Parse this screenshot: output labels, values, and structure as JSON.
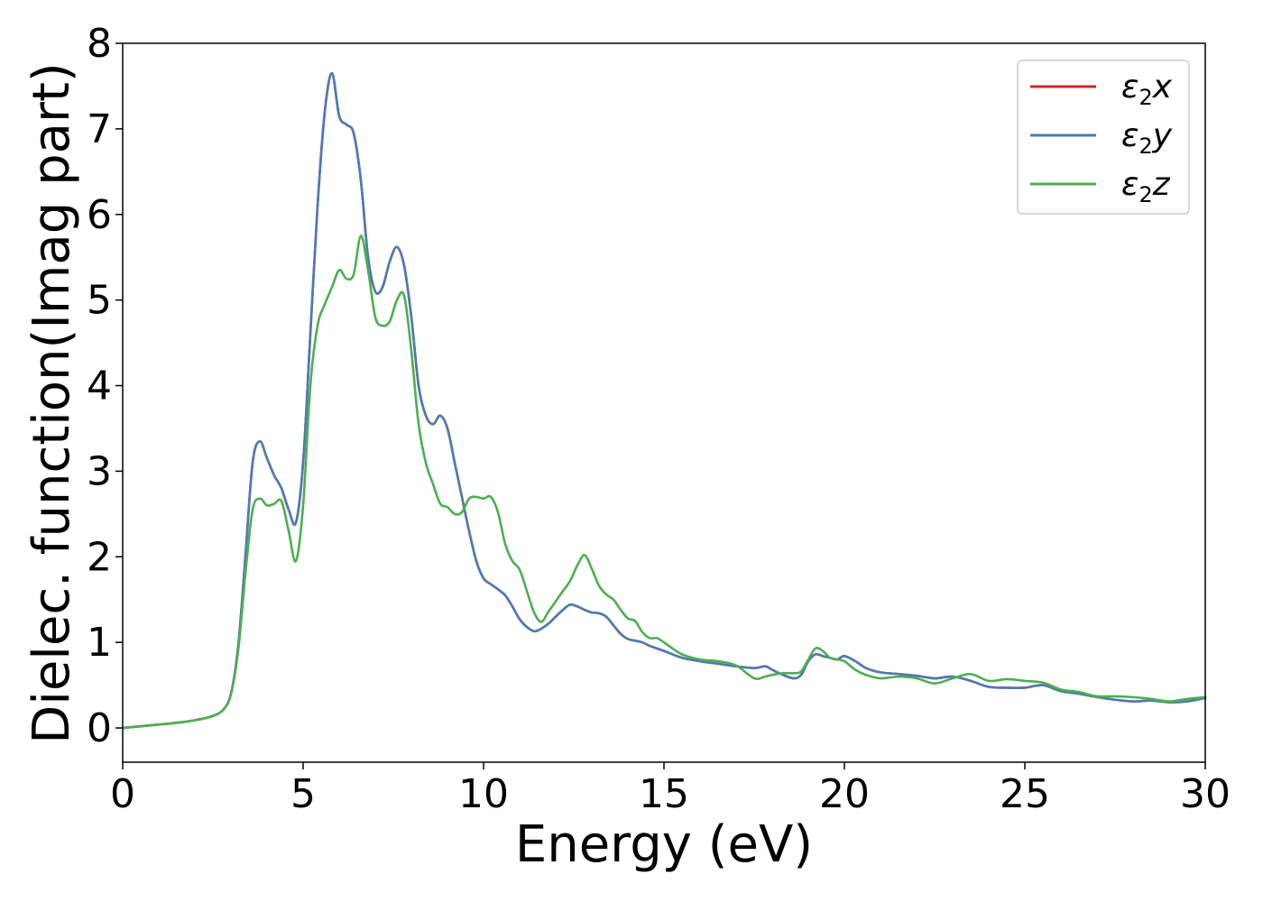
{
  "chart_data": {
    "type": "line",
    "xlabel": "Energy (eV)",
    "ylabel": "Dielec. function(Imag part)",
    "xlim": [
      0,
      30
    ],
    "ylim": [
      -0.4,
      8
    ],
    "xticks": [
      0,
      5,
      10,
      15,
      20,
      25,
      30
    ],
    "xtick_labels": [
      "0",
      "5",
      "10",
      "15",
      "20",
      "25",
      "30"
    ],
    "yticks": [
      0,
      1,
      2,
      3,
      4,
      5,
      6,
      7,
      8
    ],
    "ytick_labels": [
      "0",
      "1",
      "2",
      "3",
      "4",
      "5",
      "6",
      "7",
      "8"
    ],
    "grid": false,
    "legend_position": "top-right",
    "series": [
      {
        "name": "ε₂x",
        "legend_base": "ε",
        "legend_sub": "2",
        "legend_tail": "x",
        "color": "#d62728",
        "x": [
          0,
          0.5,
          1,
          1.5,
          2,
          2.5,
          2.8,
          3.0,
          3.2,
          3.4,
          3.6,
          3.8,
          4.0,
          4.2,
          4.4,
          4.6,
          4.8,
          5.0,
          5.2,
          5.4,
          5.6,
          5.8,
          6.0,
          6.2,
          6.4,
          6.6,
          6.8,
          7.0,
          7.2,
          7.4,
          7.6,
          7.8,
          8.0,
          8.2,
          8.4,
          8.6,
          8.8,
          9.0,
          9.2,
          9.4,
          9.6,
          9.8,
          10.0,
          10.2,
          10.4,
          10.6,
          10.8,
          11.0,
          11.2,
          11.4,
          11.6,
          11.8,
          12.0,
          12.2,
          12.4,
          12.6,
          12.8,
          13.0,
          13.2,
          13.4,
          13.6,
          13.8,
          14.0,
          14.2,
          14.4,
          14.6,
          14.8,
          15.0,
          15.5,
          16.0,
          16.5,
          17.0,
          17.5,
          17.8,
          18.0,
          18.3,
          18.6,
          18.8,
          19.0,
          19.2,
          19.4,
          19.6,
          19.8,
          20.0,
          20.3,
          20.6,
          21.0,
          21.5,
          22.0,
          22.5,
          23.0,
          23.5,
          24.0,
          24.5,
          25.0,
          25.5,
          26.0,
          26.5,
          27.0,
          27.5,
          28.0,
          28.5,
          29.0,
          29.5,
          30.0
        ],
        "y": [
          0.0,
          0.02,
          0.04,
          0.06,
          0.09,
          0.14,
          0.22,
          0.4,
          0.95,
          2.0,
          3.1,
          3.35,
          3.15,
          2.95,
          2.8,
          2.55,
          2.4,
          3.1,
          4.6,
          6.1,
          7.2,
          7.65,
          7.15,
          7.05,
          6.95,
          6.4,
          5.5,
          5.1,
          5.15,
          5.45,
          5.62,
          5.4,
          4.8,
          4.0,
          3.65,
          3.55,
          3.65,
          3.5,
          3.1,
          2.7,
          2.3,
          1.95,
          1.75,
          1.68,
          1.62,
          1.55,
          1.42,
          1.27,
          1.18,
          1.13,
          1.16,
          1.22,
          1.3,
          1.38,
          1.44,
          1.42,
          1.38,
          1.35,
          1.34,
          1.3,
          1.2,
          1.1,
          1.04,
          1.02,
          1.0,
          0.96,
          0.93,
          0.9,
          0.82,
          0.78,
          0.75,
          0.72,
          0.7,
          0.72,
          0.68,
          0.62,
          0.58,
          0.62,
          0.78,
          0.86,
          0.84,
          0.82,
          0.8,
          0.84,
          0.78,
          0.7,
          0.65,
          0.63,
          0.61,
          0.58,
          0.6,
          0.55,
          0.48,
          0.47,
          0.47,
          0.5,
          0.43,
          0.4,
          0.36,
          0.33,
          0.31,
          0.32,
          0.3,
          0.31,
          0.35
        ]
      },
      {
        "name": "ε₂y",
        "legend_base": "ε",
        "legend_sub": "2",
        "legend_tail": "y",
        "color": "#4a7cb5",
        "x": [
          0,
          0.5,
          1,
          1.5,
          2,
          2.5,
          2.8,
          3.0,
          3.2,
          3.4,
          3.6,
          3.8,
          4.0,
          4.2,
          4.4,
          4.6,
          4.8,
          5.0,
          5.2,
          5.4,
          5.6,
          5.8,
          6.0,
          6.2,
          6.4,
          6.6,
          6.8,
          7.0,
          7.2,
          7.4,
          7.6,
          7.8,
          8.0,
          8.2,
          8.4,
          8.6,
          8.8,
          9.0,
          9.2,
          9.4,
          9.6,
          9.8,
          10.0,
          10.2,
          10.4,
          10.6,
          10.8,
          11.0,
          11.2,
          11.4,
          11.6,
          11.8,
          12.0,
          12.2,
          12.4,
          12.6,
          12.8,
          13.0,
          13.2,
          13.4,
          13.6,
          13.8,
          14.0,
          14.2,
          14.4,
          14.6,
          14.8,
          15.0,
          15.5,
          16.0,
          16.5,
          17.0,
          17.5,
          17.8,
          18.0,
          18.3,
          18.6,
          18.8,
          19.0,
          19.2,
          19.4,
          19.6,
          19.8,
          20.0,
          20.3,
          20.6,
          21.0,
          21.5,
          22.0,
          22.5,
          23.0,
          23.5,
          24.0,
          24.5,
          25.0,
          25.5,
          26.0,
          26.5,
          27.0,
          27.5,
          28.0,
          28.5,
          29.0,
          29.5,
          30.0
        ],
        "y": [
          0.0,
          0.02,
          0.04,
          0.06,
          0.09,
          0.14,
          0.22,
          0.4,
          0.95,
          2.0,
          3.1,
          3.35,
          3.15,
          2.95,
          2.8,
          2.55,
          2.4,
          3.1,
          4.6,
          6.1,
          7.2,
          7.65,
          7.15,
          7.05,
          6.95,
          6.4,
          5.5,
          5.1,
          5.15,
          5.45,
          5.62,
          5.4,
          4.8,
          4.0,
          3.65,
          3.55,
          3.65,
          3.5,
          3.1,
          2.7,
          2.3,
          1.95,
          1.75,
          1.68,
          1.62,
          1.55,
          1.42,
          1.27,
          1.18,
          1.13,
          1.16,
          1.22,
          1.3,
          1.38,
          1.44,
          1.42,
          1.38,
          1.35,
          1.34,
          1.3,
          1.2,
          1.1,
          1.04,
          1.02,
          1.0,
          0.96,
          0.93,
          0.9,
          0.82,
          0.78,
          0.75,
          0.72,
          0.7,
          0.72,
          0.68,
          0.62,
          0.58,
          0.62,
          0.78,
          0.86,
          0.84,
          0.82,
          0.8,
          0.84,
          0.78,
          0.7,
          0.65,
          0.63,
          0.61,
          0.58,
          0.6,
          0.55,
          0.48,
          0.47,
          0.47,
          0.5,
          0.43,
          0.4,
          0.36,
          0.33,
          0.31,
          0.32,
          0.3,
          0.31,
          0.35
        ]
      },
      {
        "name": "ε₂z",
        "legend_base": "ε",
        "legend_sub": "2",
        "legend_tail": "z",
        "color": "#4caf50",
        "x": [
          0,
          0.5,
          1,
          1.5,
          2,
          2.5,
          2.8,
          3.0,
          3.2,
          3.4,
          3.6,
          3.8,
          4.0,
          4.2,
          4.4,
          4.6,
          4.8,
          5.0,
          5.2,
          5.4,
          5.6,
          5.8,
          6.0,
          6.2,
          6.4,
          6.6,
          6.8,
          7.0,
          7.2,
          7.4,
          7.6,
          7.8,
          8.0,
          8.2,
          8.4,
          8.6,
          8.8,
          9.0,
          9.2,
          9.4,
          9.6,
          9.8,
          10.0,
          10.2,
          10.4,
          10.6,
          10.8,
          11.0,
          11.2,
          11.4,
          11.6,
          11.8,
          12.0,
          12.2,
          12.4,
          12.6,
          12.8,
          13.0,
          13.2,
          13.4,
          13.6,
          13.8,
          14.0,
          14.2,
          14.4,
          14.6,
          14.8,
          15.0,
          15.5,
          16.0,
          16.5,
          17.0,
          17.5,
          17.8,
          18.0,
          18.3,
          18.6,
          18.8,
          19.0,
          19.2,
          19.4,
          19.6,
          19.8,
          20.0,
          20.3,
          20.6,
          21.0,
          21.5,
          22.0,
          22.5,
          23.0,
          23.5,
          24.0,
          24.5,
          25.0,
          25.5,
          26.0,
          26.5,
          27.0,
          27.5,
          28.0,
          28.5,
          29.0,
          29.5,
          30.0
        ],
        "y": [
          0.0,
          0.02,
          0.04,
          0.06,
          0.09,
          0.14,
          0.22,
          0.4,
          0.9,
          1.8,
          2.55,
          2.68,
          2.6,
          2.62,
          2.65,
          2.3,
          1.95,
          2.6,
          4.0,
          4.7,
          4.95,
          5.15,
          5.35,
          5.25,
          5.3,
          5.75,
          5.35,
          4.8,
          4.7,
          4.75,
          5.0,
          5.05,
          4.4,
          3.55,
          3.1,
          2.85,
          2.62,
          2.58,
          2.5,
          2.52,
          2.68,
          2.7,
          2.68,
          2.7,
          2.52,
          2.15,
          1.95,
          1.85,
          1.6,
          1.35,
          1.24,
          1.36,
          1.48,
          1.6,
          1.72,
          1.9,
          2.02,
          1.86,
          1.66,
          1.56,
          1.5,
          1.38,
          1.28,
          1.25,
          1.12,
          1.05,
          1.05,
          1.0,
          0.86,
          0.8,
          0.78,
          0.73,
          0.58,
          0.6,
          0.62,
          0.64,
          0.64,
          0.66,
          0.8,
          0.93,
          0.9,
          0.82,
          0.8,
          0.78,
          0.68,
          0.62,
          0.58,
          0.6,
          0.58,
          0.52,
          0.58,
          0.63,
          0.55,
          0.57,
          0.55,
          0.53,
          0.45,
          0.42,
          0.37,
          0.37,
          0.36,
          0.34,
          0.31,
          0.34,
          0.36
        ]
      }
    ]
  }
}
